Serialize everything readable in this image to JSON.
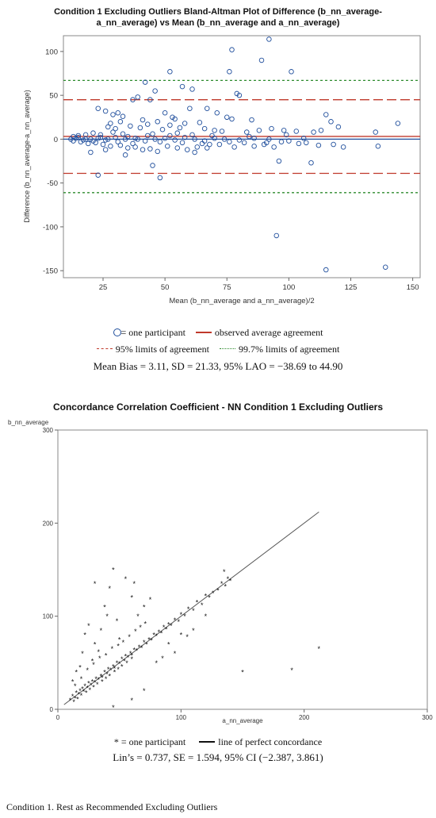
{
  "chart_data": [
    {
      "type": "scatter",
      "title_line1": "Condition 1 Excluding Outliers Bland-Altman Plot of Difference (b_nn_average-",
      "title_line2": "a_nn_average) vs Mean (b_nn_average and a_nn_average)",
      "xlabel": "Mean (b_nn_average and a_nn_average)/2",
      "ylabel": "Difference (b_nn_average-a_nn_average)",
      "xlim": [
        9,
        153
      ],
      "ylim": [
        -158,
        118
      ],
      "xticks": [
        25,
        50,
        75,
        100,
        125,
        150
      ],
      "yticks": [
        -150,
        -100,
        -50,
        0,
        50,
        100
      ],
      "reference_lines": [
        {
          "y": 67,
          "style": "dotted-green",
          "color": "#2e8b2e"
        },
        {
          "y": 45,
          "style": "dashed-red",
          "color": "#c0392b"
        },
        {
          "y": 3.11,
          "style": "solid-red",
          "color": "#c0392b"
        },
        {
          "y": 0,
          "style": "solid-blue",
          "color": "#1f4e9c"
        },
        {
          "y": -39,
          "style": "dashed-red",
          "color": "#c0392b"
        },
        {
          "y": -61,
          "style": "dotted-green",
          "color": "#2e8b2e"
        }
      ],
      "marker_color": "#1f4e9c",
      "points": [
        [
          92,
          114
        ],
        [
          77,
          102
        ],
        [
          89,
          90
        ],
        [
          76,
          77
        ],
        [
          52,
          77
        ],
        [
          101,
          77
        ],
        [
          42,
          65
        ],
        [
          57,
          60
        ],
        [
          61,
          57
        ],
        [
          46,
          55
        ],
        [
          79,
          52
        ],
        [
          80,
          50
        ],
        [
          39,
          48
        ],
        [
          37,
          45
        ],
        [
          44,
          45
        ],
        [
          23,
          35
        ],
        [
          26,
          32
        ],
        [
          31,
          30
        ],
        [
          29,
          28
        ],
        [
          33,
          26
        ],
        [
          50,
          30
        ],
        [
          53,
          25
        ],
        [
          54,
          23
        ],
        [
          60,
          35
        ],
        [
          67,
          35
        ],
        [
          71,
          30
        ],
        [
          75,
          25
        ],
        [
          77,
          23
        ],
        [
          85,
          22
        ],
        [
          64,
          19
        ],
        [
          58,
          18
        ],
        [
          47,
          20
        ],
        [
          43,
          17
        ],
        [
          36,
          15
        ],
        [
          30,
          12
        ],
        [
          27,
          14
        ],
        [
          40,
          13
        ],
        [
          49,
          11
        ],
        [
          56,
          13
        ],
        [
          66,
          12
        ],
        [
          70,
          10
        ],
        [
          73,
          9
        ],
        [
          83,
          8
        ],
        [
          88,
          10
        ],
        [
          93,
          12
        ],
        [
          98,
          10
        ],
        [
          103,
          9
        ],
        [
          110,
          8
        ],
        [
          113,
          10
        ],
        [
          117,
          20
        ],
        [
          115,
          28
        ],
        [
          144,
          18
        ],
        [
          120,
          14
        ],
        [
          135,
          8
        ],
        [
          29,
          8
        ],
        [
          24,
          5
        ],
        [
          21,
          7
        ],
        [
          18,
          5
        ],
        [
          15,
          4
        ],
        [
          13,
          3
        ],
        [
          16,
          -3
        ],
        [
          19,
          -5
        ],
        [
          22,
          -4
        ],
        [
          25,
          -6
        ],
        [
          28,
          -8
        ],
        [
          32,
          -7
        ],
        [
          35,
          -10
        ],
        [
          38,
          -9
        ],
        [
          41,
          -12
        ],
        [
          44,
          -11
        ],
        [
          47,
          -14
        ],
        [
          51,
          -8
        ],
        [
          55,
          -10
        ],
        [
          59,
          -12
        ],
        [
          63,
          -9
        ],
        [
          67,
          -10
        ],
        [
          72,
          -6
        ],
        [
          78,
          -9
        ],
        [
          82,
          -4
        ],
        [
          86,
          -8
        ],
        [
          90,
          -6
        ],
        [
          94,
          -9
        ],
        [
          97,
          -3
        ],
        [
          104,
          -5
        ],
        [
          107,
          -4
        ],
        [
          112,
          -7
        ],
        [
          118,
          -6
        ],
        [
          122,
          -9
        ],
        [
          136,
          -8
        ],
        [
          45,
          -30
        ],
        [
          48,
          -44
        ],
        [
          23,
          -41
        ],
        [
          20,
          -15
        ],
        [
          34,
          -18
        ],
        [
          62,
          -15
        ],
        [
          96,
          -25
        ],
        [
          109,
          -27
        ],
        [
          95,
          -110
        ],
        [
          115,
          -149
        ],
        [
          139,
          -146
        ],
        [
          12,
          0
        ],
        [
          14,
          1
        ],
        [
          17,
          -1
        ],
        [
          20,
          0
        ],
        [
          23,
          1
        ],
        [
          26,
          -1
        ],
        [
          30,
          2
        ],
        [
          34,
          0
        ],
        [
          38,
          1
        ],
        [
          42,
          -2
        ],
        [
          46,
          0
        ],
        [
          50,
          1
        ],
        [
          54,
          -1
        ],
        [
          58,
          2
        ],
        [
          62,
          0
        ],
        [
          66,
          -2
        ],
        [
          70,
          1
        ],
        [
          74,
          0
        ],
        [
          80,
          -1
        ],
        [
          86,
          1
        ],
        [
          92,
          0
        ],
        [
          100,
          -2
        ],
        [
          106,
          1
        ],
        [
          13,
          -2
        ],
        [
          15,
          2
        ],
        [
          18,
          0
        ],
        [
          21,
          -2
        ],
        [
          24,
          2
        ],
        [
          27,
          0
        ],
        [
          31,
          -3
        ],
        [
          35,
          3
        ],
        [
          39,
          0
        ],
        [
          43,
          4
        ],
        [
          48,
          -3
        ],
        [
          52,
          4
        ],
        [
          57,
          -4
        ],
        [
          61,
          5
        ],
        [
          65,
          -5
        ],
        [
          69,
          4
        ],
        [
          76,
          -3
        ],
        [
          84,
          3
        ],
        [
          91,
          -4
        ],
        [
          99,
          5
        ],
        [
          28,
          18
        ],
        [
          32,
          20
        ],
        [
          41,
          22
        ],
        [
          52,
          16
        ],
        [
          45,
          6
        ],
        [
          37,
          -5
        ],
        [
          33,
          6
        ],
        [
          26,
          -12
        ],
        [
          55,
          7
        ],
        [
          68,
          -6
        ]
      ]
    },
    {
      "type": "scatter",
      "title": "Concordance Correlation Coefficient - NN Condition 1 Excluding Outliers",
      "xlabel": "a_nn_average",
      "ylabel": "b_nn_average",
      "xlim": [
        0,
        300
      ],
      "ylim": [
        0,
        300
      ],
      "xticks": [
        0,
        100,
        200,
        300
      ],
      "yticks": [
        0,
        100,
        200,
        300
      ],
      "reference_line": {
        "x": [
          5,
          212
        ],
        "y": [
          5,
          212
        ],
        "label": "line of perfect concordance"
      },
      "marker_color": "#111111",
      "points": [
        [
          10,
          10
        ],
        [
          12,
          14
        ],
        [
          14,
          12
        ],
        [
          15,
          18
        ],
        [
          17,
          16
        ],
        [
          18,
          20
        ],
        [
          20,
          22
        ],
        [
          21,
          19
        ],
        [
          22,
          25
        ],
        [
          24,
          23
        ],
        [
          25,
          28
        ],
        [
          27,
          26
        ],
        [
          28,
          30
        ],
        [
          30,
          29
        ],
        [
          31,
          33
        ],
        [
          33,
          32
        ],
        [
          35,
          36
        ],
        [
          36,
          34
        ],
        [
          38,
          40
        ],
        [
          40,
          38
        ],
        [
          41,
          43
        ],
        [
          43,
          42
        ],
        [
          45,
          46
        ],
        [
          46,
          44
        ],
        [
          48,
          50
        ],
        [
          50,
          49
        ],
        [
          52,
          54
        ],
        [
          54,
          52
        ],
        [
          55,
          57
        ],
        [
          57,
          56
        ],
        [
          59,
          60
        ],
        [
          60,
          58
        ],
        [
          62,
          64
        ],
        [
          64,
          63
        ],
        [
          66,
          67
        ],
        [
          68,
          66
        ],
        [
          70,
          72
        ],
        [
          72,
          70
        ],
        [
          74,
          75
        ],
        [
          76,
          74
        ],
        [
          78,
          80
        ],
        [
          80,
          79
        ],
        [
          82,
          83
        ],
        [
          84,
          82
        ],
        [
          86,
          88
        ],
        [
          88,
          86
        ],
        [
          90,
          91
        ],
        [
          92,
          90
        ],
        [
          95,
          96
        ],
        [
          98,
          94
        ],
        [
          100,
          102
        ],
        [
          103,
          100
        ],
        [
          106,
          108
        ],
        [
          110,
          106
        ],
        [
          113,
          115
        ],
        [
          117,
          112
        ],
        [
          120,
          122
        ],
        [
          123,
          120
        ],
        [
          126,
          125
        ],
        [
          130,
          128
        ],
        [
          133,
          135
        ],
        [
          136,
          132
        ],
        [
          140,
          138
        ],
        [
          12,
          30
        ],
        [
          15,
          40
        ],
        [
          18,
          45
        ],
        [
          20,
          60
        ],
        [
          22,
          80
        ],
        [
          25,
          90
        ],
        [
          30,
          70
        ],
        [
          35,
          85
        ],
        [
          38,
          110
        ],
        [
          42,
          130
        ],
        [
          48,
          95
        ],
        [
          50,
          75
        ],
        [
          55,
          140
        ],
        [
          60,
          120
        ],
        [
          65,
          100
        ],
        [
          70,
          110
        ],
        [
          40,
          100
        ],
        [
          28,
          52
        ],
        [
          33,
          62
        ],
        [
          45,
          150
        ],
        [
          62,
          135
        ],
        [
          75,
          118
        ],
        [
          135,
          148
        ],
        [
          138,
          140
        ],
        [
          150,
          40
        ],
        [
          190,
          42
        ],
        [
          212,
          65
        ],
        [
          30,
          135
        ],
        [
          45,
          2
        ],
        [
          60,
          10
        ],
        [
          70,
          20
        ],
        [
          80,
          50
        ],
        [
          90,
          70
        ],
        [
          100,
          80
        ],
        [
          110,
          85
        ],
        [
          120,
          100
        ],
        [
          95,
          60
        ],
        [
          85,
          55
        ],
        [
          105,
          78
        ],
        [
          14,
          25
        ],
        [
          19,
          33
        ],
        [
          24,
          42
        ],
        [
          29,
          48
        ],
        [
          34,
          55
        ],
        [
          39,
          58
        ],
        [
          44,
          65
        ],
        [
          49,
          68
        ],
        [
          53,
          72
        ],
        [
          58,
          78
        ],
        [
          63,
          84
        ],
        [
          67,
          88
        ],
        [
          71,
          92
        ],
        [
          13,
          8
        ],
        [
          16,
          11
        ],
        [
          19,
          15
        ],
        [
          23,
          18
        ],
        [
          26,
          21
        ],
        [
          29,
          24
        ],
        [
          32,
          27
        ],
        [
          36,
          30
        ],
        [
          39,
          33
        ],
        [
          42,
          36
        ],
        [
          46,
          40
        ],
        [
          49,
          43
        ],
        [
          52,
          46
        ],
        [
          56,
          50
        ],
        [
          60,
          54
        ]
      ]
    }
  ],
  "legend1": {
    "row1": [
      {
        "glyph": "circle",
        "text": "= one participant"
      },
      {
        "glyph": "solid-red",
        "text": "observed average agreement"
      }
    ],
    "row2": [
      {
        "glyph": "dashed-red",
        "text": "95% limits of agreement"
      },
      {
        "glyph": "dotted-green",
        "text": "99.7% limits of agreement"
      }
    ],
    "stats": "Mean Bias = 3.11, SD = 21.33, 95% LAO = −38.69 to 44.90"
  },
  "legend2": {
    "star_text": "* = one participant",
    "line_text": "line of perfect concordance",
    "stats": "Lin’s = 0.737, SE = 1.594, 95% CI (−2.387, 3.861)"
  },
  "caption": "Condition 1. Rest as Recommended Excluding Outliers",
  "colors": {
    "blue": "#1f4e9c",
    "red": "#c0392b",
    "green": "#2e8b2e"
  }
}
